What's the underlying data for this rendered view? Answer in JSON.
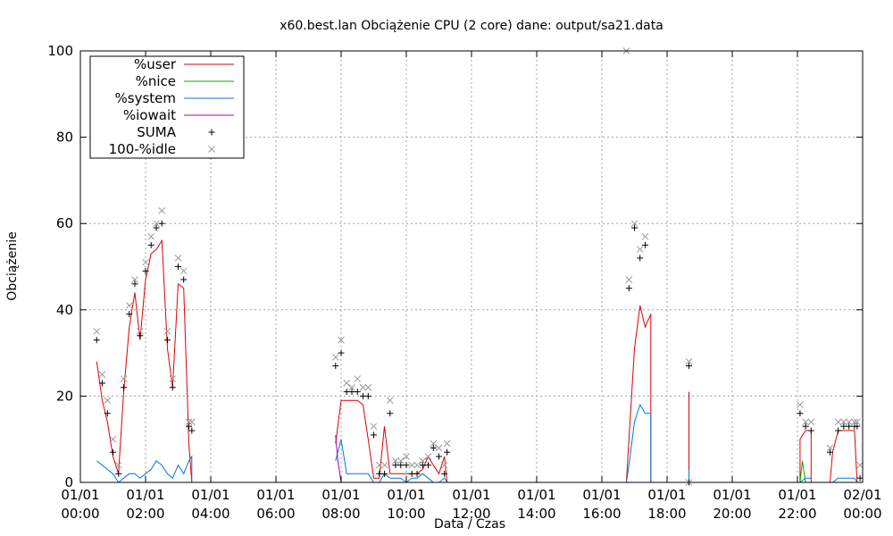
{
  "chart_data": {
    "type": "line",
    "title": "x60.best.lan Obciążenie CPU (2 core) dane: output/sa21.data",
    "xlabel": "Data / Czas",
    "ylabel": "Obciążenie",
    "xlim": [
      0,
      24
    ],
    "ylim": [
      0,
      100
    ],
    "grid": true,
    "legend_position": "top-left",
    "y_ticks": [
      {
        "value": 0,
        "label": "0"
      },
      {
        "value": 20,
        "label": "20"
      },
      {
        "value": 40,
        "label": "40"
      },
      {
        "value": 60,
        "label": "60"
      },
      {
        "value": 80,
        "label": "80"
      },
      {
        "value": 100,
        "label": "100"
      }
    ],
    "x_ticks": [
      {
        "value": 0,
        "date": "01/01",
        "time": "00:00"
      },
      {
        "value": 2,
        "date": "01/01",
        "time": "02:00"
      },
      {
        "value": 4,
        "date": "01/01",
        "time": "04:00"
      },
      {
        "value": 6,
        "date": "01/01",
        "time": "06:00"
      },
      {
        "value": 8,
        "date": "01/01",
        "time": "08:00"
      },
      {
        "value": 10,
        "date": "01/01",
        "time": "10:00"
      },
      {
        "value": 12,
        "date": "01/01",
        "time": "12:00"
      },
      {
        "value": 14,
        "date": "01/01",
        "time": "14:00"
      },
      {
        "value": 16,
        "date": "01/01",
        "time": "16:00"
      },
      {
        "value": 18,
        "date": "01/01",
        "time": "18:00"
      },
      {
        "value": 20,
        "date": "01/01",
        "time": "20:00"
      },
      {
        "value": 22,
        "date": "01/01",
        "time": "22:00"
      },
      {
        "value": 24,
        "date": "02/01",
        "time": "00:00"
      }
    ],
    "series": [
      {
        "name": "%user",
        "style": "line",
        "color": "#dd0000",
        "segments": [
          [
            [
              0.5,
              28
            ],
            [
              0.67,
              19
            ],
            [
              0.83,
              14
            ],
            [
              1.0,
              6
            ],
            [
              1.17,
              2
            ],
            [
              1.33,
              21
            ],
            [
              1.5,
              36
            ],
            [
              1.67,
              44
            ],
            [
              1.83,
              33
            ],
            [
              2.0,
              47
            ],
            [
              2.17,
              53
            ],
            [
              2.33,
              54
            ],
            [
              2.5,
              56
            ],
            [
              2.67,
              31
            ],
            [
              2.83,
              22
            ],
            [
              3.0,
              46
            ],
            [
              3.17,
              45
            ],
            [
              3.33,
              9
            ],
            [
              3.42,
              0
            ]
          ],
          [
            [
              7.83,
              9
            ],
            [
              8.0,
              19
            ],
            [
              8.17,
              19
            ],
            [
              8.33,
              19
            ],
            [
              8.5,
              19
            ],
            [
              8.67,
              18
            ],
            [
              8.83,
              10
            ],
            [
              9.0,
              1
            ],
            [
              9.17,
              1
            ],
            [
              9.33,
              13
            ],
            [
              9.5,
              2
            ],
            [
              9.67,
              2
            ],
            [
              9.83,
              2
            ],
            [
              10.0,
              2
            ],
            [
              10.17,
              2
            ],
            [
              10.33,
              2
            ],
            [
              10.5,
              3
            ],
            [
              10.67,
              6
            ],
            [
              10.83,
              4
            ],
            [
              11.0,
              2
            ],
            [
              11.17,
              6
            ],
            [
              11.25,
              0
            ]
          ],
          [
            [
              16.75,
              0
            ],
            [
              16.83,
              10
            ],
            [
              17.0,
              31
            ],
            [
              17.17,
              41
            ],
            [
              17.33,
              36
            ],
            [
              17.5,
              39
            ],
            [
              17.5,
              0
            ]
          ],
          [
            [
              18.67,
              21
            ],
            [
              18.67,
              0
            ]
          ],
          [
            [
              22.08,
              0
            ],
            [
              22.08,
              10
            ],
            [
              22.25,
              12
            ],
            [
              22.42,
              12
            ],
            [
              22.42,
              0
            ]
          ],
          [
            [
              23.0,
              0
            ],
            [
              23.08,
              7
            ],
            [
              23.25,
              12
            ],
            [
              23.5,
              12
            ],
            [
              23.75,
              12
            ],
            [
              23.83,
              0
            ]
          ]
        ]
      },
      {
        "name": "%nice",
        "style": "line",
        "color": "#00aa00",
        "segments": [
          [
            [
              22.08,
              0
            ],
            [
              22.15,
              5
            ],
            [
              22.25,
              0
            ]
          ]
        ]
      },
      {
        "name": "%system",
        "style": "line",
        "color": "#0077dd",
        "segments": [
          [
            [
              0.5,
              5
            ],
            [
              0.67,
              4
            ],
            [
              0.83,
              3
            ],
            [
              1.0,
              2
            ],
            [
              1.17,
              0
            ],
            [
              1.33,
              1
            ],
            [
              1.5,
              2
            ],
            [
              1.67,
              2
            ],
            [
              1.83,
              1
            ],
            [
              2.0,
              2
            ],
            [
              2.17,
              3
            ],
            [
              2.33,
              5
            ],
            [
              2.5,
              4
            ],
            [
              2.67,
              2
            ],
            [
              2.83,
              1
            ],
            [
              3.0,
              4
            ],
            [
              3.17,
              2
            ],
            [
              3.33,
              5
            ],
            [
              3.42,
              6
            ],
            [
              3.42,
              0
            ]
          ],
          [
            [
              7.83,
              5
            ],
            [
              8.0,
              10
            ],
            [
              8.17,
              2
            ],
            [
              8.33,
              2
            ],
            [
              8.5,
              2
            ],
            [
              8.67,
              2
            ],
            [
              8.83,
              2
            ],
            [
              9.0,
              0
            ],
            [
              9.17,
              0
            ],
            [
              9.33,
              2
            ],
            [
              9.5,
              1
            ],
            [
              9.67,
              1
            ],
            [
              9.83,
              1
            ],
            [
              10.0,
              0
            ],
            [
              10.17,
              1
            ],
            [
              10.33,
              1
            ],
            [
              10.5,
              2
            ],
            [
              10.67,
              1
            ],
            [
              10.83,
              0
            ],
            [
              11.0,
              0
            ],
            [
              11.17,
              1
            ],
            [
              11.25,
              0
            ]
          ],
          [
            [
              16.75,
              0
            ],
            [
              16.83,
              4
            ],
            [
              17.0,
              14
            ],
            [
              17.17,
              18
            ],
            [
              17.33,
              16
            ],
            [
              17.5,
              16
            ],
            [
              17.5,
              0
            ]
          ],
          [
            [
              18.67,
              0
            ],
            [
              18.67,
              3
            ],
            [
              18.67,
              0
            ]
          ],
          [
            [
              22.08,
              0
            ],
            [
              22.25,
              1
            ],
            [
              22.42,
              1
            ]
          ],
          [
            [
              23.0,
              0
            ],
            [
              23.08,
              0
            ],
            [
              23.25,
              1
            ],
            [
              23.5,
              1
            ],
            [
              23.75,
              1
            ],
            [
              23.83,
              0
            ]
          ]
        ]
      },
      {
        "name": "%iowait",
        "style": "line",
        "color": "#aa00aa",
        "segments": [
          [
            [
              7.83,
              11
            ],
            [
              7.9,
              5
            ],
            [
              8.0,
              0
            ]
          ]
        ]
      },
      {
        "name": "SUMA",
        "style": "plus",
        "color": "#000000",
        "points": [
          [
            0.5,
            33
          ],
          [
            0.67,
            23
          ],
          [
            0.83,
            16
          ],
          [
            1.0,
            7
          ],
          [
            1.17,
            2
          ],
          [
            1.33,
            22
          ],
          [
            1.5,
            39
          ],
          [
            1.67,
            46
          ],
          [
            1.83,
            34
          ],
          [
            2.0,
            49
          ],
          [
            2.17,
            55
          ],
          [
            2.33,
            59
          ],
          [
            2.5,
            60
          ],
          [
            2.67,
            33
          ],
          [
            2.83,
            22
          ],
          [
            3.0,
            50
          ],
          [
            3.17,
            47
          ],
          [
            3.33,
            13
          ],
          [
            3.42,
            12
          ],
          [
            7.83,
            27
          ],
          [
            8.0,
            30
          ],
          [
            8.17,
            21
          ],
          [
            8.33,
            21
          ],
          [
            8.5,
            21
          ],
          [
            8.67,
            20
          ],
          [
            8.83,
            20
          ],
          [
            9.0,
            11
          ],
          [
            9.17,
            2
          ],
          [
            9.33,
            2
          ],
          [
            9.5,
            16
          ],
          [
            9.67,
            4
          ],
          [
            9.83,
            4
          ],
          [
            10.0,
            4
          ],
          [
            10.17,
            2
          ],
          [
            10.33,
            2
          ],
          [
            10.5,
            4
          ],
          [
            10.67,
            4
          ],
          [
            10.83,
            8
          ],
          [
            11.0,
            6
          ],
          [
            11.17,
            2
          ],
          [
            11.25,
            7
          ],
          [
            16.83,
            45
          ],
          [
            17.0,
            59
          ],
          [
            17.17,
            52
          ],
          [
            17.33,
            55
          ],
          [
            18.67,
            27
          ],
          [
            18.67,
            0
          ],
          [
            22.08,
            16
          ],
          [
            22.25,
            13
          ],
          [
            22.42,
            12
          ],
          [
            23.0,
            7
          ],
          [
            23.25,
            12
          ],
          [
            23.42,
            13
          ],
          [
            23.58,
            13
          ],
          [
            23.75,
            13
          ],
          [
            23.83,
            13
          ],
          [
            23.92,
            1
          ]
        ]
      },
      {
        "name": "100-%idle",
        "style": "cross",
        "color": "#999999",
        "points": [
          [
            0.5,
            35
          ],
          [
            0.67,
            25
          ],
          [
            0.83,
            19
          ],
          [
            1.0,
            10
          ],
          [
            1.17,
            4
          ],
          [
            1.33,
            24
          ],
          [
            1.5,
            41
          ],
          [
            1.67,
            47
          ],
          [
            1.83,
            35
          ],
          [
            2.0,
            51
          ],
          [
            2.17,
            57
          ],
          [
            2.33,
            60
          ],
          [
            2.5,
            63
          ],
          [
            2.67,
            35
          ],
          [
            2.83,
            24
          ],
          [
            3.0,
            52
          ],
          [
            3.17,
            49
          ],
          [
            3.33,
            14
          ],
          [
            3.42,
            14
          ],
          [
            7.83,
            29
          ],
          [
            8.0,
            33
          ],
          [
            8.17,
            23
          ],
          [
            8.33,
            22
          ],
          [
            8.5,
            24
          ],
          [
            8.67,
            22
          ],
          [
            8.83,
            22
          ],
          [
            9.0,
            13
          ],
          [
            9.17,
            4
          ],
          [
            9.33,
            4
          ],
          [
            9.5,
            19
          ],
          [
            9.67,
            5
          ],
          [
            9.83,
            5
          ],
          [
            10.0,
            6
          ],
          [
            10.17,
            4
          ],
          [
            10.33,
            4
          ],
          [
            10.5,
            5
          ],
          [
            10.67,
            6
          ],
          [
            10.83,
            9
          ],
          [
            11.0,
            8
          ],
          [
            11.17,
            4
          ],
          [
            11.25,
            9
          ],
          [
            16.75,
            100
          ],
          [
            16.83,
            47
          ],
          [
            17.0,
            60
          ],
          [
            17.17,
            54
          ],
          [
            17.33,
            57
          ],
          [
            18.67,
            28
          ],
          [
            18.67,
            0
          ],
          [
            22.08,
            18
          ],
          [
            22.25,
            14
          ],
          [
            22.42,
            14
          ],
          [
            23.0,
            8
          ],
          [
            23.25,
            14
          ],
          [
            23.42,
            14
          ],
          [
            23.58,
            14
          ],
          [
            23.75,
            14
          ],
          [
            23.83,
            14
          ],
          [
            23.92,
            4
          ]
        ]
      }
    ]
  }
}
